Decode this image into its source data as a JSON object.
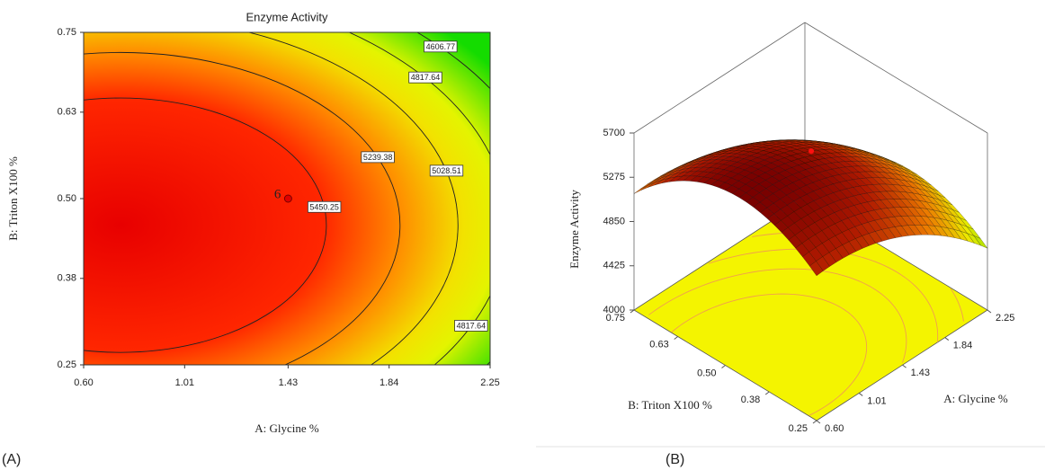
{
  "chart_data": [
    {
      "type": "contour",
      "title": "Enzyme Activity",
      "panel_label": "(A)",
      "xlabel": "A: Glycine %",
      "ylabel": "B: Triton X100 %",
      "xlim": [
        0.6,
        2.25
      ],
      "ylim": [
        0.25,
        0.75
      ],
      "xticks": [
        {
          "value": 0.6,
          "label": "0.60"
        },
        1.01,
        1.43,
        1.84,
        2.25
      ],
      "yticks": [
        0.25,
        0.38,
        {
          "value": 0.5,
          "label": "0.50"
        },
        0.63,
        0.75
      ],
      "levels": [
        4606.77,
        4817.64,
        5028.51,
        5239.38,
        5450.25
      ],
      "design_point": {
        "x": 1.43,
        "y": 0.5,
        "count": 6
      }
    },
    {
      "type": "surface3d",
      "panel_label": "(B)",
      "xlabel": "A: Glycine %",
      "ylabel": "B: Triton X100 %",
      "zlabel": "Enzyme Activity",
      "xlim": [
        0.6,
        2.25
      ],
      "ylim": [
        0.25,
        0.75
      ],
      "zlim": [
        4000,
        5700
      ],
      "xticks": [
        {
          "value": 0.6,
          "label": "0.60"
        },
        1.01,
        1.43,
        1.84,
        2.25
      ],
      "yticks": [
        0.25,
        0.38,
        {
          "value": 0.5,
          "label": "0.50"
        },
        0.63,
        0.75
      ],
      "zticks": [
        4000,
        4425,
        4850,
        5275,
        5700
      ],
      "design_point": {
        "x": 1.43,
        "y": 0.5
      }
    }
  ]
}
